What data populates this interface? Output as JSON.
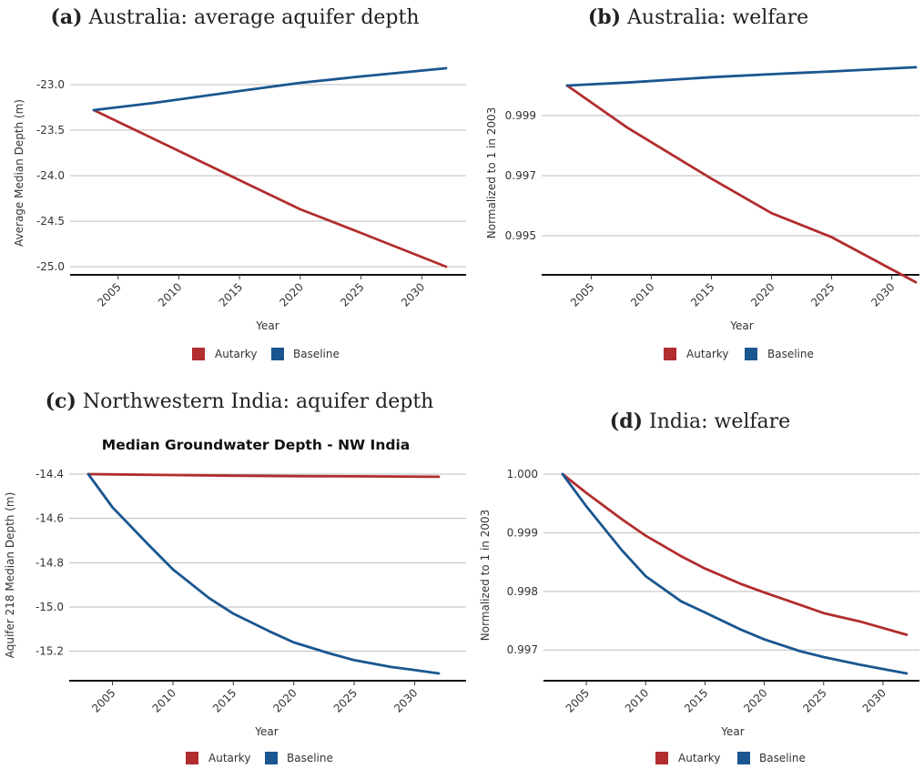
{
  "captions": [
    {
      "letter": "(a)",
      "text": "Australia: average aquifer depth"
    },
    {
      "letter": "(b)",
      "text": "Australia: welfare"
    },
    {
      "letter": "(c)",
      "text": "Northwestern India: aquifer depth"
    },
    {
      "letter": "(d)",
      "text": "India: welfare"
    }
  ],
  "legend": {
    "autarky": "Autarky",
    "baseline": "Baseline"
  },
  "colors": {
    "autarky": "#b22d2d",
    "baseline": "#1a5690"
  },
  "chart_data": [
    {
      "type": "line",
      "title": "",
      "xlabel": "Year",
      "ylabel": "Average Median Depth (m)",
      "xlim": [
        2003,
        2032
      ],
      "ylim": [
        -25.0,
        -23.0
      ],
      "xticks": [
        "2005",
        "2010",
        "2015",
        "2020",
        "2025",
        "2030"
      ],
      "yticks": [
        "-23.0",
        "-23.5",
        "-24.0",
        "-24.5",
        "-25.0"
      ],
      "grid": true,
      "legend_position": "bottom",
      "series": [
        {
          "name": "Autarky",
          "x": [
            2003,
            2008,
            2015,
            2020,
            2025,
            2032
          ],
          "y": [
            -23.28,
            -23.6,
            -24.05,
            -24.37,
            -24.63,
            -25.0
          ]
        },
        {
          "name": "Baseline",
          "x": [
            2003,
            2008,
            2015,
            2020,
            2025,
            2032
          ],
          "y": [
            -23.28,
            -23.2,
            -23.07,
            -22.98,
            -22.91,
            -22.82
          ]
        }
      ]
    },
    {
      "type": "line",
      "title": "",
      "xlabel": "Year",
      "ylabel": "Normalized to 1 in 2003",
      "xlim": [
        2003,
        2032
      ],
      "ylim": [
        0.994,
        1.0
      ],
      "xticks": [
        "2005",
        "2010",
        "2015",
        "2020",
        "2025",
        "2030"
      ],
      "yticks": [
        "0.999",
        "0.997",
        "0.995"
      ],
      "grid": true,
      "legend_position": "bottom",
      "series": [
        {
          "name": "Autarky",
          "x": [
            2003,
            2008,
            2015,
            2020,
            2025,
            2032
          ],
          "y": [
            1.0,
            0.9986,
            0.9969,
            0.99575,
            0.99495,
            0.99345
          ]
        },
        {
          "name": "Baseline",
          "x": [
            2003,
            2008,
            2015,
            2020,
            2025,
            2032
          ],
          "y": [
            1.0,
            1.0001,
            1.00028,
            1.00038,
            1.00047,
            1.00061
          ]
        }
      ]
    },
    {
      "type": "line",
      "title": "Median Groundwater Depth - NW India",
      "xlabel": "Year",
      "ylabel": "Aquifer 218 Median Depth (m)",
      "xlim": [
        2003,
        2032
      ],
      "ylim": [
        -15.3,
        -14.4
      ],
      "xticks": [
        "2005",
        "2010",
        "2015",
        "2020",
        "2025",
        "2030"
      ],
      "yticks": [
        "-14.4",
        "-14.6",
        "-14.8",
        "-15.0",
        "-15.2"
      ],
      "grid": true,
      "legend_position": "bottom",
      "series": [
        {
          "name": "Autarky",
          "x": [
            2003,
            2010,
            2015,
            2020,
            2025,
            2032
          ],
          "y": [
            -14.4,
            -14.404,
            -14.407,
            -14.409,
            -14.41,
            -14.412
          ]
        },
        {
          "name": "Baseline",
          "x": [
            2003,
            2005,
            2008,
            2010,
            2013,
            2015,
            2018,
            2020,
            2023,
            2025,
            2028,
            2030,
            2032
          ],
          "y": [
            -14.4,
            -14.55,
            -14.72,
            -14.83,
            -14.96,
            -15.03,
            -15.11,
            -15.16,
            -15.21,
            -15.24,
            -15.27,
            -15.285,
            -15.3
          ]
        }
      ]
    },
    {
      "type": "line",
      "title": "",
      "xlabel": "Year",
      "ylabel": "Normalized to 1 in 2003",
      "xlim": [
        2003,
        2032
      ],
      "ylim": [
        0.9966,
        1.0
      ],
      "xticks": [
        "2005",
        "2010",
        "2015",
        "2020",
        "2025",
        "2030"
      ],
      "yticks": [
        "1.000",
        "0.999",
        "0.998",
        "0.997"
      ],
      "grid": true,
      "legend_position": "bottom",
      "series": [
        {
          "name": "Autarky",
          "x": [
            2003,
            2005,
            2008,
            2010,
            2013,
            2015,
            2018,
            2020,
            2023,
            2025,
            2028,
            2032
          ],
          "y": [
            1.0,
            0.99968,
            0.99923,
            0.99895,
            0.9986,
            0.99839,
            0.99813,
            0.99798,
            0.99777,
            0.99763,
            0.99749,
            0.99726
          ]
        },
        {
          "name": "Baseline",
          "x": [
            2003,
            2005,
            2008,
            2010,
            2013,
            2015,
            2018,
            2020,
            2023,
            2025,
            2028,
            2032
          ],
          "y": [
            1.0,
            0.99945,
            0.9987,
            0.99826,
            0.99783,
            0.99764,
            0.99735,
            0.99718,
            0.99698,
            0.99688,
            0.99675,
            0.9966
          ]
        }
      ]
    }
  ]
}
